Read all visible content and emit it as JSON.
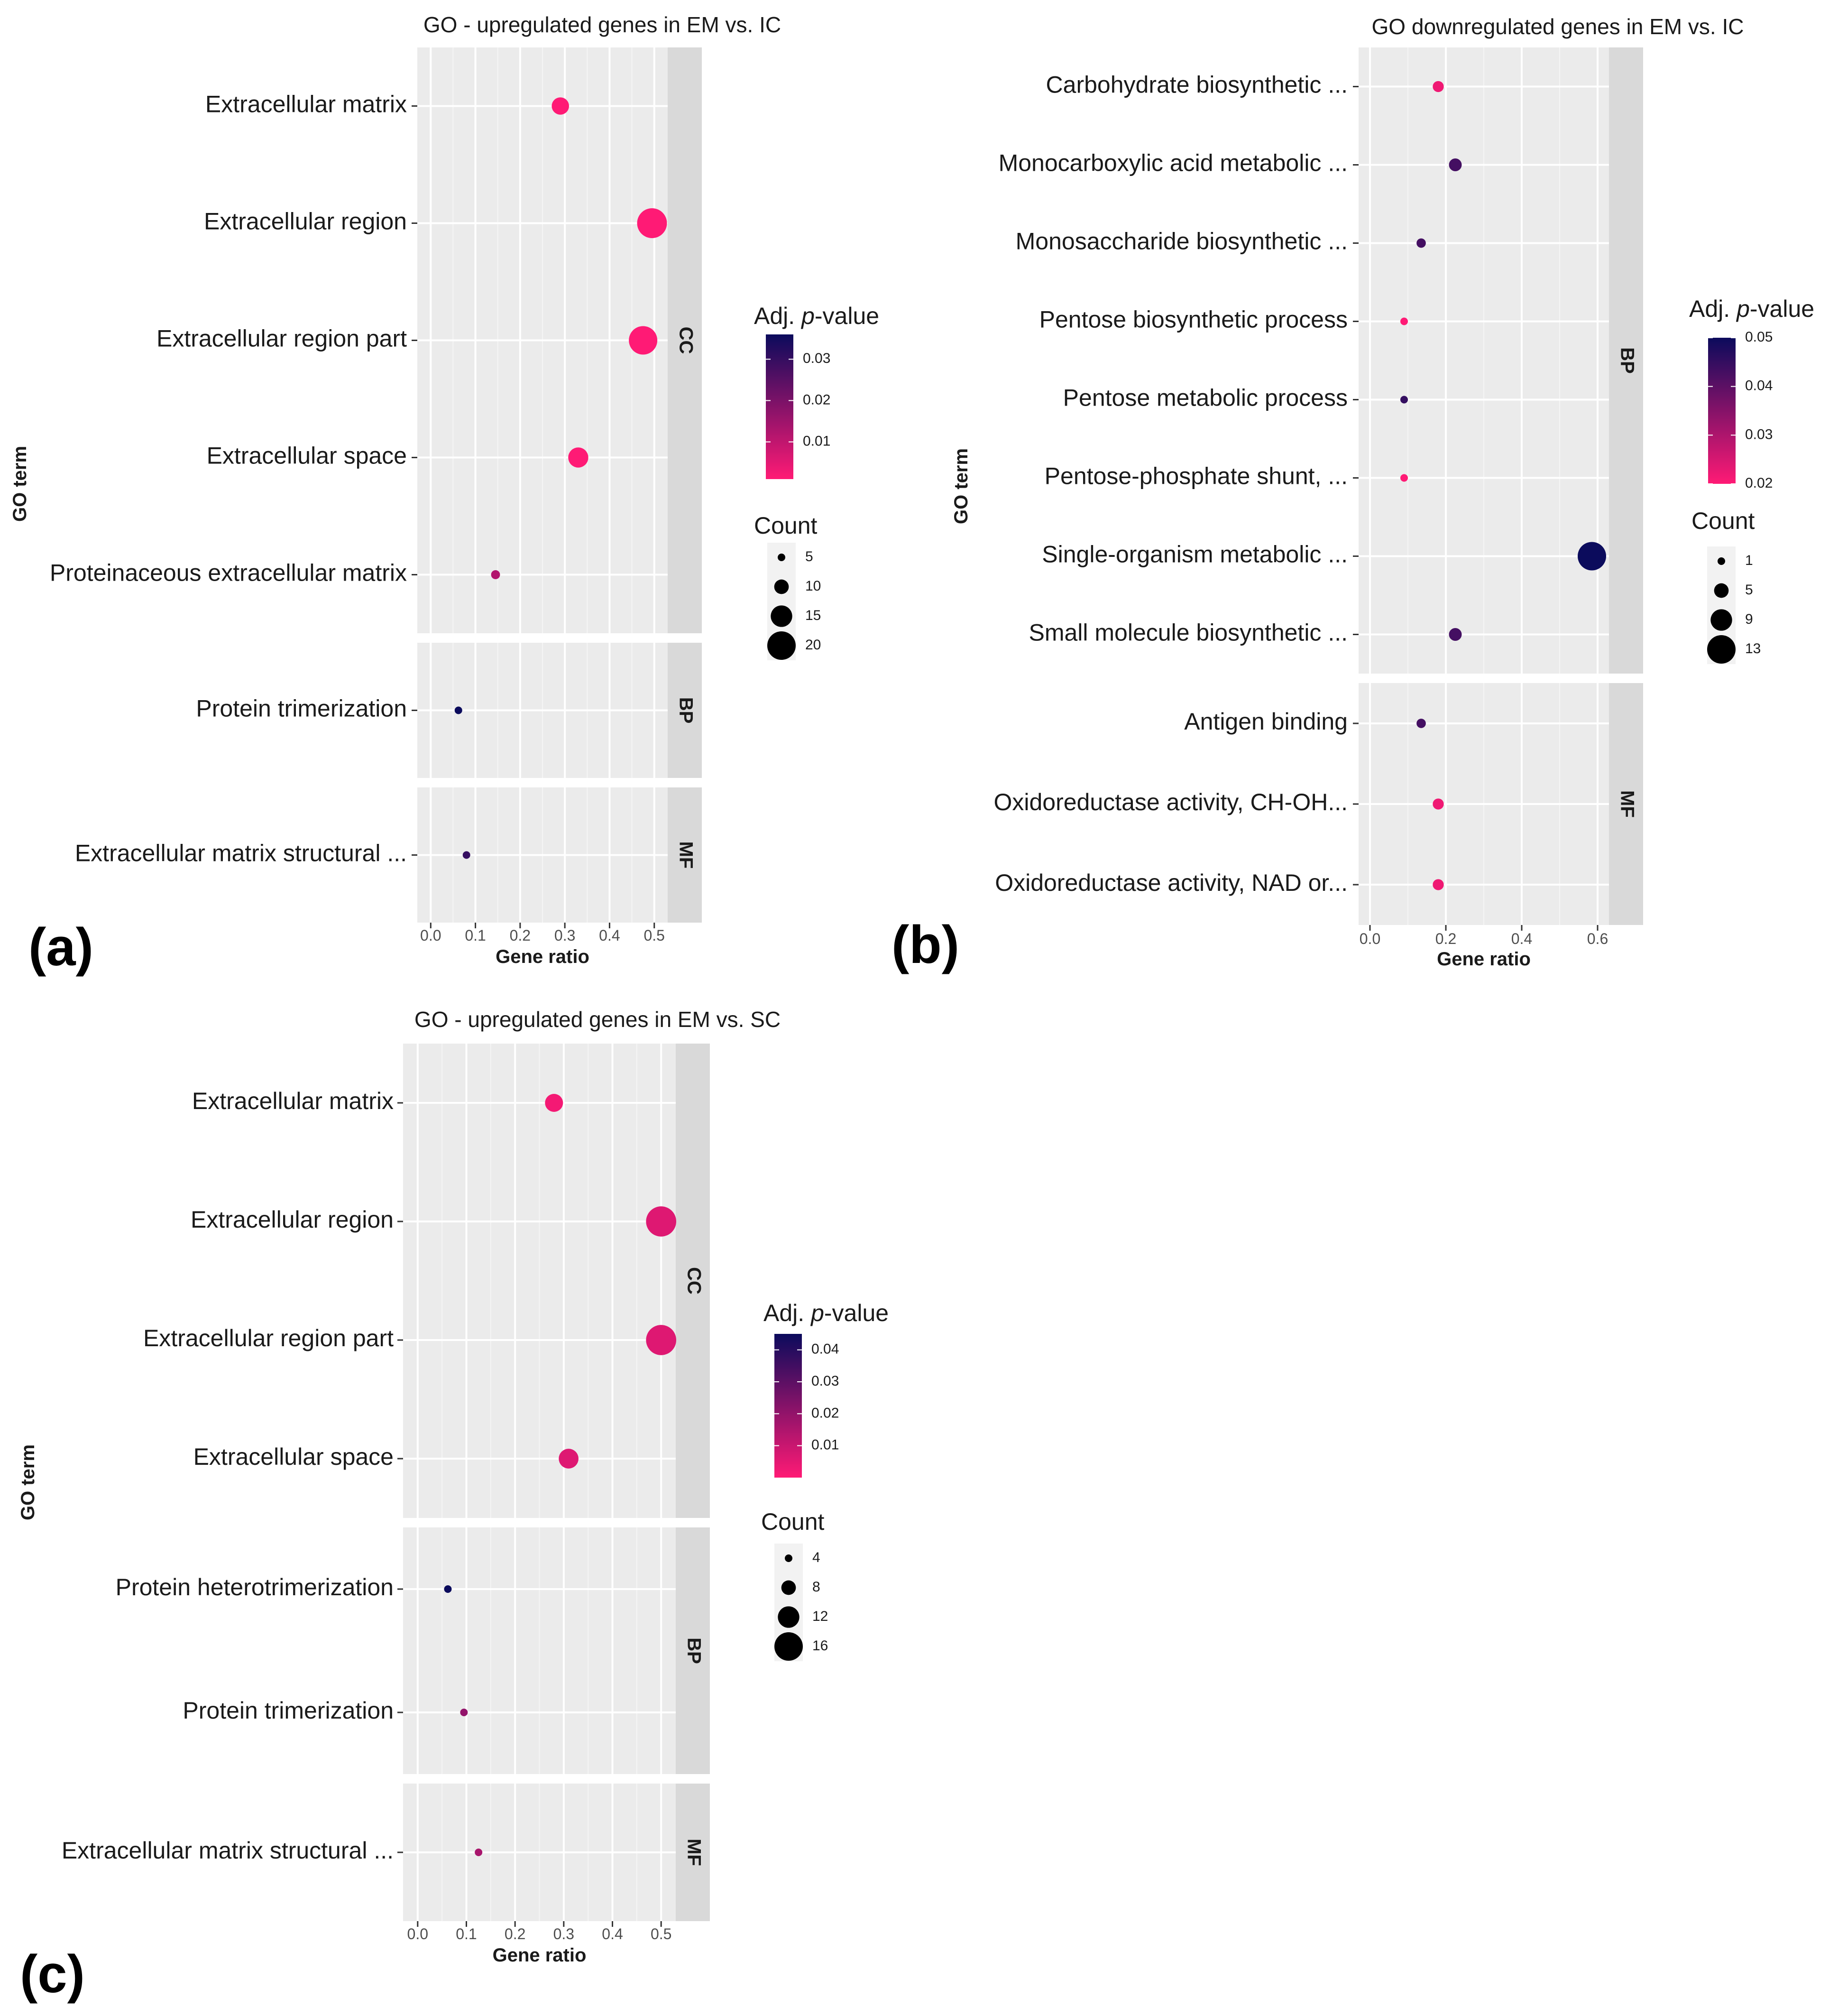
{
  "figure_letters": [
    "(a)",
    "(b)",
    "(c)"
  ],
  "chart_data": [
    {
      "panel": "(a)",
      "type": "scatter",
      "title": "GO - upregulated genes in EM vs. IC",
      "xlabel": "Gene ratio",
      "ylabel": "GO term",
      "xlim": [
        -0.03,
        0.53
      ],
      "x_ticks": [
        0.0,
        0.1,
        0.2,
        0.3,
        0.4,
        0.5
      ],
      "x_tick_labels": [
        "0.0",
        "0.1",
        "0.2",
        "0.3",
        "0.4",
        "0.5"
      ],
      "facets": [
        {
          "label": "CC",
          "terms": [
            "Extracellular matrix",
            "Extracellular region",
            "Extracellular region part",
            "Extracellular space",
            "Proteinaceous extracellular matrix"
          ]
        },
        {
          "label": "BP",
          "terms": [
            "Protein trimerization"
          ]
        },
        {
          "label": "MF",
          "terms": [
            "Extracellular matrix structural ..."
          ]
        }
      ],
      "points": [
        {
          "term": "Extracellular matrix",
          "facet": "CC",
          "gene_ratio": 0.29,
          "count": 12,
          "padj": 0.001
        },
        {
          "term": "Extracellular region",
          "facet": "CC",
          "gene_ratio": 0.495,
          "count": 21,
          "padj": 0.001
        },
        {
          "term": "Extracellular region part",
          "facet": "CC",
          "gene_ratio": 0.475,
          "count": 20,
          "padj": 0.001
        },
        {
          "term": "Extracellular space",
          "facet": "CC",
          "gene_ratio": 0.33,
          "count": 14,
          "padj": 0.001
        },
        {
          "term": "Proteinaceous extracellular matrix",
          "facet": "CC",
          "gene_ratio": 0.145,
          "count": 6,
          "padj": 0.012
        },
        {
          "term": "Protein trimerization",
          "facet": "BP",
          "gene_ratio": 0.062,
          "count": 2,
          "padj": 0.036
        },
        {
          "term": "Extracellular matrix structural ...",
          "facet": "MF",
          "gene_ratio": 0.08,
          "count": 3,
          "padj": 0.03
        }
      ],
      "color_legend": {
        "title_prefix": "Adj. ",
        "title_italic": "p",
        "title_suffix": "-value",
        "ticks": [
          0.01,
          0.02,
          0.03
        ],
        "tick_labels": [
          "0.01",
          "0.02",
          "0.03"
        ],
        "range": [
          0.001,
          0.036
        ],
        "low_color": "#ff1a75",
        "high_color": "#0b0b5c"
      },
      "size_legend": {
        "title": "Count",
        "values": [
          5,
          10,
          15,
          20
        ],
        "labels": [
          "5",
          "10",
          "15",
          "20"
        ]
      }
    },
    {
      "panel": "(b)",
      "type": "scatter",
      "title": "GO downregulated genes in EM vs. IC",
      "xlabel": "Gene ratio",
      "ylabel": "GO term",
      "xlim": [
        -0.03,
        0.63
      ],
      "x_ticks": [
        0.0,
        0.2,
        0.4,
        0.6
      ],
      "x_tick_labels": [
        "0.0",
        "0.2",
        "0.4",
        "0.6"
      ],
      "facets": [
        {
          "label": "BP",
          "terms": [
            "Carbohydrate biosynthetic ...",
            "Monocarboxylic acid metabolic ...",
            "Monosaccharide biosynthetic ...",
            "Pentose biosynthetic process",
            "Pentose metabolic process",
            "Pentose-phosphate shunt, ...",
            "Single-organism metabolic ...",
            "Small molecule biosynthetic ..."
          ]
        },
        {
          "label": "MF",
          "terms": [
            "Antigen binding",
            "Oxidoreductase activity, CH-OH...",
            "Oxidoreductase activity, NAD or..."
          ]
        }
      ],
      "points": [
        {
          "term": "Carbohydrate biosynthetic ...",
          "facet": "BP",
          "gene_ratio": 0.18,
          "count": 3,
          "padj": 0.022
        },
        {
          "term": "Monocarboxylic acid metabolic ...",
          "facet": "BP",
          "gene_ratio": 0.225,
          "count": 4,
          "padj": 0.043
        },
        {
          "term": "Monosaccharide biosynthetic ...",
          "facet": "BP",
          "gene_ratio": 0.135,
          "count": 2,
          "padj": 0.043
        },
        {
          "term": "Pentose biosynthetic process",
          "facet": "BP",
          "gene_ratio": 0.09,
          "count": 1,
          "padj": 0.02
        },
        {
          "term": "Pentose metabolic process",
          "facet": "BP",
          "gene_ratio": 0.09,
          "count": 1,
          "padj": 0.045
        },
        {
          "term": "Pentose-phosphate shunt, ...",
          "facet": "BP",
          "gene_ratio": 0.09,
          "count": 1,
          "padj": 0.02
        },
        {
          "term": "Single-organism metabolic ...",
          "facet": "BP",
          "gene_ratio": 0.585,
          "count": 13,
          "padj": 0.05
        },
        {
          "term": "Small molecule biosynthetic ...",
          "facet": "BP",
          "gene_ratio": 0.225,
          "count": 4,
          "padj": 0.043
        },
        {
          "term": "Antigen binding",
          "facet": "MF",
          "gene_ratio": 0.135,
          "count": 2,
          "padj": 0.043
        },
        {
          "term": "Oxidoreductase activity, CH-OH...",
          "facet": "MF",
          "gene_ratio": 0.18,
          "count": 3,
          "padj": 0.022
        },
        {
          "term": "Oxidoreductase activity, NAD or...",
          "facet": "MF",
          "gene_ratio": 0.18,
          "count": 3,
          "padj": 0.022
        }
      ],
      "color_legend": {
        "title_prefix": "Adj. ",
        "title_italic": "p",
        "title_suffix": "-value",
        "ticks": [
          0.02,
          0.03,
          0.04,
          0.05
        ],
        "tick_labels": [
          "0.02",
          "0.03",
          "0.04",
          "0.05"
        ],
        "range": [
          0.02,
          0.05
        ],
        "low_color": "#ff1a75",
        "high_color": "#0b0b5c"
      },
      "size_legend": {
        "title": "Count",
        "values": [
          1,
          5,
          9,
          13
        ],
        "labels": [
          "1",
          "5",
          "9",
          "13"
        ]
      }
    },
    {
      "panel": "(c)",
      "type": "scatter",
      "title": "GO - upregulated genes in EM vs. SC",
      "xlabel": "Gene ratio",
      "ylabel": "GO term",
      "xlim": [
        -0.03,
        0.53
      ],
      "x_ticks": [
        0.0,
        0.1,
        0.2,
        0.3,
        0.4,
        0.5
      ],
      "x_tick_labels": [
        "0.0",
        "0.1",
        "0.2",
        "0.3",
        "0.4",
        "0.5"
      ],
      "facets": [
        {
          "label": "CC",
          "terms": [
            "Extracellular matrix",
            "Extracellular region",
            "Extracellular region part",
            "Extracellular space"
          ]
        },
        {
          "label": "BP",
          "terms": [
            "Protein heterotrimerization",
            "Protein trimerization"
          ]
        },
        {
          "label": "MF",
          "terms": [
            "Extracellular matrix structural ..."
          ]
        }
      ],
      "points": [
        {
          "term": "Extracellular matrix",
          "facet": "CC",
          "gene_ratio": 0.28,
          "count": 10,
          "padj": 0.002
        },
        {
          "term": "Extracellular region",
          "facet": "CC",
          "gene_ratio": 0.5,
          "count": 17,
          "padj": 0.006
        },
        {
          "term": "Extracellular region part",
          "facet": "CC",
          "gene_ratio": 0.5,
          "count": 17,
          "padj": 0.006
        },
        {
          "term": "Extracellular space",
          "facet": "CC",
          "gene_ratio": 0.31,
          "count": 11,
          "padj": 0.006
        },
        {
          "term": "Protein heterotrimerization",
          "facet": "BP",
          "gene_ratio": 0.062,
          "count": 2,
          "padj": 0.045
        },
        {
          "term": "Protein trimerization",
          "facet": "BP",
          "gene_ratio": 0.095,
          "count": 3,
          "padj": 0.02
        },
        {
          "term": "Extracellular matrix structural ...",
          "facet": "MF",
          "gene_ratio": 0.125,
          "count": 4,
          "padj": 0.016
        }
      ],
      "color_legend": {
        "title_prefix": "Adj. ",
        "title_italic": "p",
        "title_suffix": "-value",
        "ticks": [
          0.01,
          0.02,
          0.03,
          0.04
        ],
        "tick_labels": [
          "0.01",
          "0.02",
          "0.03",
          "0.04"
        ],
        "range": [
          0.0,
          0.045
        ],
        "low_color": "#ff1a75",
        "high_color": "#0b0b5c"
      },
      "size_legend": {
        "title": "Count",
        "values": [
          4,
          8,
          12,
          16
        ],
        "labels": [
          "4",
          "8",
          "12",
          "16"
        ]
      }
    }
  ]
}
